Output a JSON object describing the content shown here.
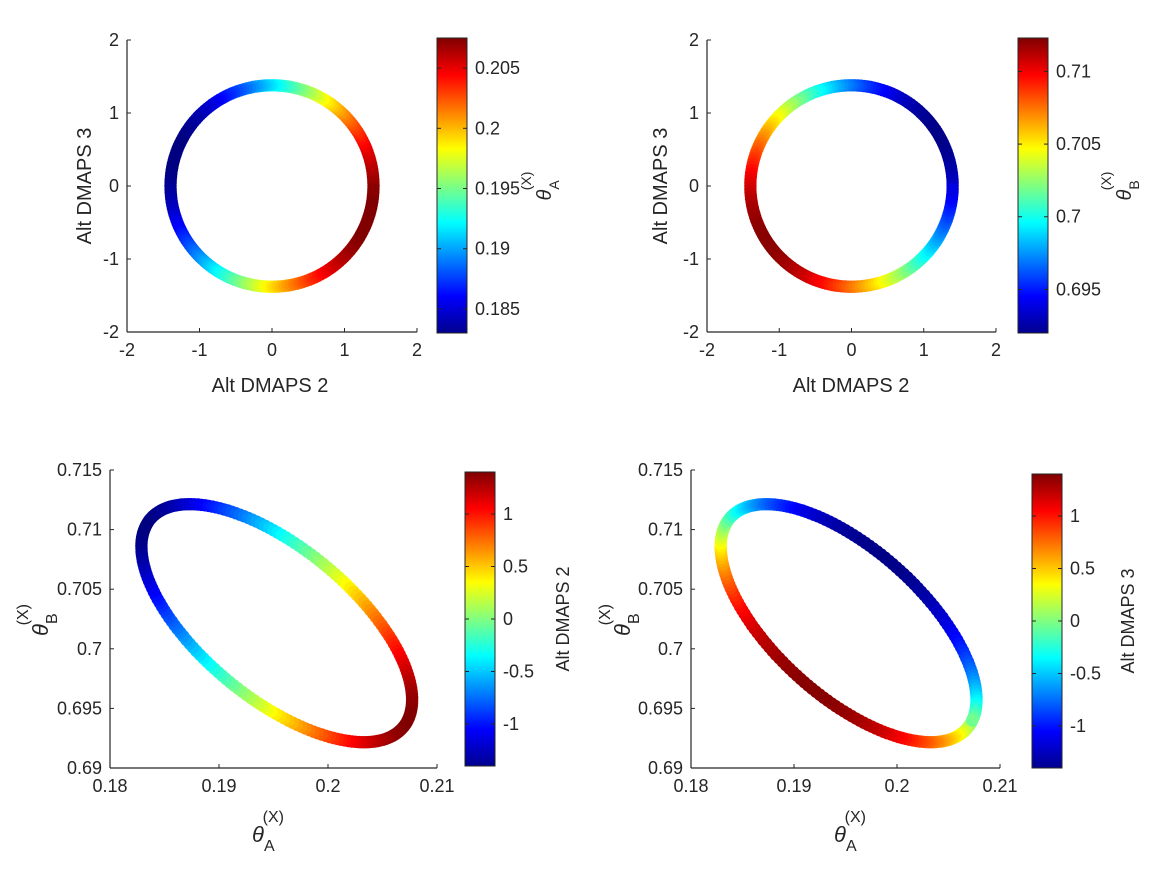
{
  "chart_data": [
    {
      "type": "scatter",
      "ring": {
        "cx": 0,
        "cy": 0,
        "rx": 1.4,
        "ry": 1.38
      },
      "xlim": [
        -2,
        2
      ],
      "ylim": [
        -2,
        2
      ],
      "xticks": [
        -2,
        -1,
        0,
        1,
        2
      ],
      "xtick_labels": [
        "-2",
        "-1",
        "0",
        "1",
        "2"
      ],
      "yticks": [
        -2,
        -1,
        0,
        1,
        2
      ],
      "ytick_labels": [
        "-2",
        "-1",
        "0",
        "1",
        "2"
      ],
      "xlabel": "Alt DMAPS 2",
      "ylabel": "Alt DMAPS 3",
      "color_by": "theta_A",
      "colorbar": {
        "min": 0.183,
        "max": 0.2075,
        "ticks": [
          0.185,
          0.19,
          0.195,
          0.2,
          0.205
        ],
        "tick_labels": [
          "0.185",
          "0.19",
          "0.195",
          "0.2",
          "0.205"
        ],
        "label_main": "θ",
        "label_sup": "(X)",
        "label_sub": "A"
      }
    },
    {
      "type": "scatter",
      "ring": {
        "cx": 0,
        "cy": 0,
        "rx": 1.4,
        "ry": 1.38
      },
      "xlim": [
        -2,
        2
      ],
      "ylim": [
        -2,
        2
      ],
      "xticks": [
        -2,
        -1,
        0,
        1,
        2
      ],
      "xtick_labels": [
        "-2",
        "-1",
        "0",
        "1",
        "2"
      ],
      "yticks": [
        -2,
        -1,
        0,
        1,
        2
      ],
      "ytick_labels": [
        "-2",
        "-1",
        "0",
        "1",
        "2"
      ],
      "xlabel": "Alt DMAPS 2",
      "ylabel": "Alt DMAPS 3",
      "color_by": "theta_B",
      "colorbar": {
        "min": 0.692,
        "max": 0.7123,
        "ticks": [
          0.695,
          0.7,
          0.705,
          0.71
        ],
        "tick_labels": [
          "0.695",
          "0.7",
          "0.705",
          "0.71"
        ],
        "label_main": "θ",
        "label_sup": "(X)",
        "label_sub": "B"
      }
    },
    {
      "type": "scatter",
      "ring": {
        "cx": 0.1953,
        "cy": 0.70215,
        "ux": 0.0119,
        "uy": -0.00834,
        "vx": -0.00355,
        "vy": -0.00549
      },
      "xlim": [
        0.18,
        0.21
      ],
      "ylim": [
        0.69,
        0.715
      ],
      "xticks": [
        0.18,
        0.19,
        0.2,
        0.21
      ],
      "xtick_labels": [
        "0.18",
        "0.19",
        "0.2",
        "0.21"
      ],
      "yticks": [
        0.69,
        0.695,
        0.7,
        0.705,
        0.71,
        0.715
      ],
      "ytick_labels": [
        "0.69",
        "0.695",
        "0.7",
        "0.705",
        "0.71",
        "0.715"
      ],
      "xlabel_main": "θ",
      "xlabel_sup": "(X)",
      "xlabel_sub": "A",
      "ylabel_main": "θ",
      "ylabel_sup": "(X)",
      "ylabel_sub": "B",
      "color_by": "dmaps2",
      "colorbar": {
        "min": -1.4,
        "max": 1.4,
        "ticks": [
          -1,
          -0.5,
          0,
          0.5,
          1
        ],
        "tick_labels": [
          "-1",
          "-0.5",
          "0",
          "0.5",
          "1"
        ],
        "label": "Alt DMAPS 2"
      }
    },
    {
      "type": "scatter",
      "ring": {
        "cx": 0.1953,
        "cy": 0.70215,
        "ux": 0.0119,
        "uy": -0.00834,
        "vx": -0.00355,
        "vy": -0.00549
      },
      "xlim": [
        0.18,
        0.21
      ],
      "ylim": [
        0.69,
        0.715
      ],
      "xticks": [
        0.18,
        0.19,
        0.2,
        0.21
      ],
      "xtick_labels": [
        "0.18",
        "0.19",
        "0.2",
        "0.21"
      ],
      "yticks": [
        0.69,
        0.695,
        0.7,
        0.705,
        0.71,
        0.715
      ],
      "ytick_labels": [
        "0.69",
        "0.695",
        "0.7",
        "0.705",
        "0.71",
        "0.715"
      ],
      "xlabel_main": "θ",
      "xlabel_sup": "(X)",
      "xlabel_sub": "A",
      "ylabel_main": "θ",
      "ylabel_sup": "(X)",
      "ylabel_sub": "B",
      "color_by": "dmaps3",
      "colorbar": {
        "min": -1.4,
        "max": 1.4,
        "ticks": [
          -1,
          -0.5,
          0,
          0.5,
          1
        ],
        "tick_labels": [
          "-1",
          "-0.5",
          "0",
          "0.5",
          "1"
        ],
        "label": "Alt DMAPS 3"
      }
    }
  ],
  "colors": {
    "axis": "#262626",
    "background": "#ffffff"
  }
}
